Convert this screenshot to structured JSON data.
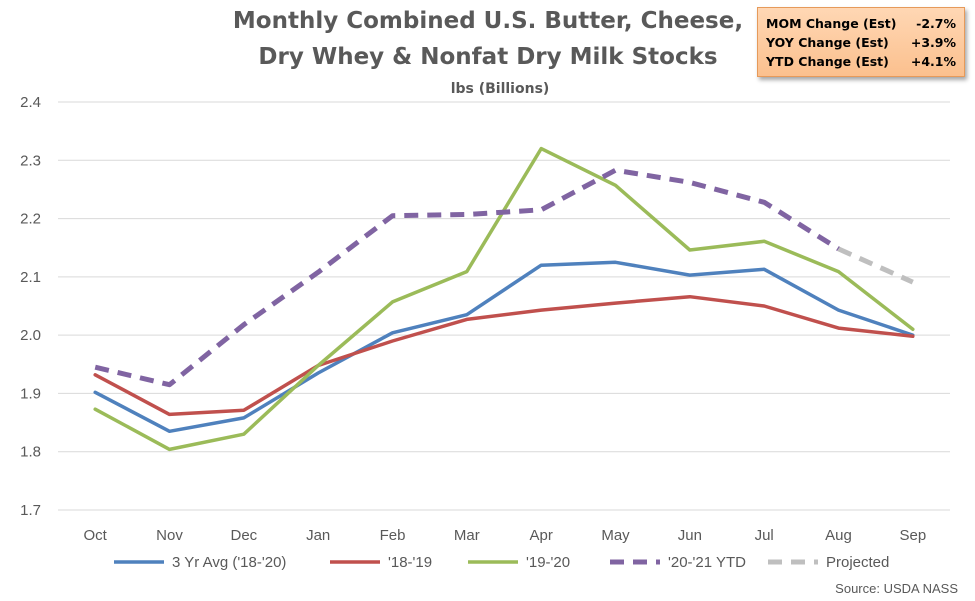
{
  "chart_data": {
    "type": "line",
    "title": [
      "Monthly Combined U.S. Butter, Cheese,",
      "Dry Whey & Nonfat Dry Milk Stocks"
    ],
    "subtitle": "lbs (Billions)",
    "categories": [
      "Oct",
      "Nov",
      "Dec",
      "Jan",
      "Feb",
      "Mar",
      "Apr",
      "May",
      "Jun",
      "Jul",
      "Aug",
      "Sep"
    ],
    "ylim": [
      1.7,
      2.4
    ],
    "yticks": [
      "1.7",
      "1.8",
      "1.9",
      "2.0",
      "2.1",
      "2.2",
      "2.3",
      "2.4"
    ],
    "grid": true,
    "legend_position": "bottom",
    "series": [
      {
        "name": "3 Yr Avg ('18-'20)",
        "color": "#4f81bd",
        "style": "solid",
        "values": [
          1.902,
          1.835,
          1.858,
          1.935,
          2.004,
          2.035,
          2.12,
          2.125,
          2.103,
          2.113,
          2.043,
          2.0
        ]
      },
      {
        "name": "'18-'19",
        "color": "#c0504d",
        "style": "solid",
        "values": [
          1.932,
          1.864,
          1.871,
          1.948,
          1.99,
          2.027,
          2.043,
          2.055,
          2.066,
          2.05,
          2.012,
          1.998
        ]
      },
      {
        "name": "'19-'20",
        "color": "#9bbb59",
        "style": "solid",
        "values": [
          1.873,
          1.804,
          1.83,
          1.948,
          2.057,
          2.109,
          2.32,
          2.257,
          2.146,
          2.161,
          2.109,
          2.01
        ]
      },
      {
        "name": "'20-'21 YTD",
        "color": "#8064a2",
        "style": "dashed",
        "values": [
          1.945,
          1.915,
          2.018,
          2.108,
          2.205,
          2.207,
          2.215,
          2.283,
          2.262,
          2.228,
          2.148,
          null
        ]
      },
      {
        "name": "Projected",
        "color": "#bfbfbf",
        "style": "dashed",
        "values": [
          null,
          null,
          null,
          null,
          null,
          null,
          null,
          null,
          null,
          null,
          2.148,
          2.091
        ]
      }
    ],
    "source": "Source: USDA NASS"
  },
  "change_box": [
    {
      "label": "MOM Change (Est)",
      "value": "-2.7%"
    },
    {
      "label": "YOY Change (Est)",
      "value": "+3.9%"
    },
    {
      "label": "YTD Change (Est)",
      "value": "+4.1%"
    }
  ]
}
